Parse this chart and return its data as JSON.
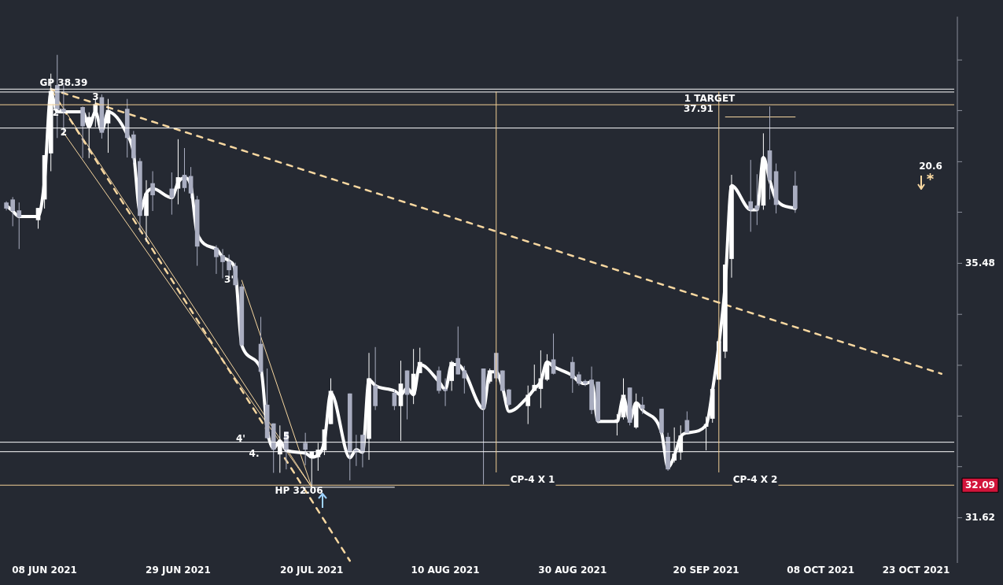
{
  "chart_data": {
    "type": "candlestick",
    "x": [
      "2021-06-02",
      "2021-06-03",
      "2021-06-04",
      "2021-06-07",
      "2021-06-08",
      "2021-06-09",
      "2021-06-10",
      "2021-06-11",
      "2021-06-14",
      "2021-06-15",
      "2021-06-16",
      "2021-06-17",
      "2021-06-18",
      "2021-06-21",
      "2021-06-22",
      "2021-06-23",
      "2021-06-24",
      "2021-06-25",
      "2021-06-28",
      "2021-06-29",
      "2021-06-30",
      "2021-07-01",
      "2021-07-02",
      "2021-07-05",
      "2021-07-06",
      "2021-07-07",
      "2021-07-08",
      "2021-07-09",
      "2021-07-12",
      "2021-07-13",
      "2021-07-14",
      "2021-07-15",
      "2021-07-16",
      "2021-07-19",
      "2021-07-20",
      "2021-07-21",
      "2021-07-22",
      "2021-07-23",
      "2021-07-26",
      "2021-07-27",
      "2021-07-28",
      "2021-07-29",
      "2021-07-30",
      "2021-08-02",
      "2021-08-03",
      "2021-08-04",
      "2021-08-05",
      "2021-08-06",
      "2021-08-09",
      "2021-08-10",
      "2021-08-11",
      "2021-08-12",
      "2021-08-13",
      "2021-08-16",
      "2021-08-17",
      "2021-08-18",
      "2021-08-19",
      "2021-08-20",
      "2021-08-23",
      "2021-08-24",
      "2021-08-25",
      "2021-08-26",
      "2021-08-27",
      "2021-08-30",
      "2021-08-31",
      "2021-09-01",
      "2021-09-02",
      "2021-09-03",
      "2021-09-06",
      "2021-09-07",
      "2021-09-08",
      "2021-09-09",
      "2021-09-10",
      "2021-09-13",
      "2021-09-14",
      "2021-09-15",
      "2021-09-16",
      "2021-09-17",
      "2021-09-20",
      "2021-09-21",
      "2021-09-22",
      "2021-09-23",
      "2021-09-24",
      "2021-09-27",
      "2021-09-28",
      "2021-09-29",
      "2021-09-30",
      "2021-10-01",
      "2021-10-04"
    ],
    "ohlc": [
      [
        36.47,
        36.49,
        36.34,
        36.37
      ],
      [
        36.52,
        36.56,
        36.08,
        36.33
      ],
      [
        36.34,
        36.47,
        35.71,
        36.23
      ],
      [
        36.18,
        36.38,
        36.04,
        36.38
      ],
      [
        36.52,
        37.26,
        36.37,
        37.26
      ],
      [
        37.29,
        38.66,
        36.99,
        38.36
      ],
      [
        38.46,
        38.99,
        37.55,
        38.03
      ],
      [
        38.05,
        38.46,
        37.64,
        38.0
      ],
      [
        38.08,
        38.09,
        37.21,
        37.75
      ],
      [
        37.75,
        37.99,
        37.21,
        37.91
      ],
      [
        37.93,
        38.22,
        37.74,
        38.13
      ],
      [
        38.25,
        38.3,
        37.54,
        37.64
      ],
      [
        37.8,
        38.22,
        37.3,
        38.03
      ],
      [
        38.05,
        38.22,
        37.22,
        37.55
      ],
      [
        37.61,
        37.67,
        37.13,
        37.21
      ],
      [
        37.16,
        37.21,
        35.99,
        36.25
      ],
      [
        36.25,
        36.84,
        35.83,
        36.62
      ],
      [
        36.79,
        36.99,
        36.33,
        36.59
      ],
      [
        36.7,
        36.97,
        36.27,
        36.55
      ],
      [
        36.7,
        37.53,
        36.44,
        36.89
      ],
      [
        36.93,
        37.38,
        36.65,
        36.71
      ],
      [
        36.91,
        37.06,
        36.54,
        36.62
      ],
      [
        36.52,
        36.58,
        35.44,
        35.75
      ],
      [
        35.73,
        35.77,
        35.31,
        35.58
      ],
      [
        35.61,
        35.71,
        35.24,
        35.5
      ],
      [
        35.51,
        35.62,
        35.24,
        35.37
      ],
      [
        35.44,
        35.49,
        35.09,
        35.13
      ],
      [
        35.11,
        35.15,
        34.17,
        34.19
      ],
      [
        34.21,
        34.63,
        33.75,
        33.78
      ],
      [
        33.28,
        33.83,
        32.77,
        32.78
      ],
      [
        33.0,
        33.0,
        32.27,
        32.61
      ],
      [
        32.54,
        32.97,
        32.27,
        32.72
      ],
      [
        32.88,
        32.88,
        32.32,
        32.61
      ],
      [
        32.71,
        32.86,
        32.38,
        32.61
      ],
      [
        32.49,
        32.58,
        32.06,
        32.58
      ],
      [
        32.5,
        32.71,
        32.3,
        32.61
      ],
      [
        32.6,
        32.91,
        32.53,
        32.91
      ],
      [
        32.99,
        33.68,
        32.99,
        33.49
      ],
      [
        33.45,
        33.45,
        32.16,
        32.57
      ],
      [
        32.61,
        32.83,
        32.37,
        32.57
      ],
      [
        32.83,
        32.83,
        32.35,
        32.57
      ],
      [
        32.77,
        34.07,
        32.46,
        33.68
      ],
      [
        33.57,
        34.16,
        33.2,
        33.26
      ],
      [
        33.46,
        33.51,
        33.2,
        33.26
      ],
      [
        33.26,
        33.95,
        32.74,
        33.6
      ],
      [
        33.8,
        33.8,
        33.06,
        33.43
      ],
      [
        33.43,
        34.13,
        33.29,
        33.75
      ],
      [
        33.76,
        34.15,
        33.76,
        33.93
      ],
      [
        33.8,
        33.86,
        33.45,
        33.49
      ],
      [
        33.52,
        33.68,
        33.26,
        33.49
      ],
      [
        33.64,
        33.95,
        33.49,
        33.93
      ],
      [
        33.99,
        34.48,
        33.74,
        33.74
      ],
      [
        33.8,
        33.87,
        33.45,
        33.68
      ],
      [
        33.83,
        33.83,
        32.1,
        33.22
      ],
      [
        33.63,
        33.83,
        33.6,
        33.8
      ],
      [
        34.07,
        34.07,
        33.63,
        33.68
      ],
      [
        33.8,
        33.8,
        33.49,
        33.49
      ],
      [
        33.51,
        33.52,
        33.26,
        33.28
      ],
      [
        33.26,
        33.57,
        32.99,
        33.43
      ],
      [
        33.49,
        33.89,
        33.49,
        33.58
      ],
      [
        33.52,
        34.11,
        33.23,
        33.68
      ],
      [
        33.66,
        34.05,
        33.64,
        33.93
      ],
      [
        33.97,
        34.37,
        33.74,
        33.75
      ],
      [
        33.93,
        34.01,
        33.46,
        33.68
      ],
      [
        33.74,
        33.78,
        33.57,
        33.6
      ],
      [
        33.64,
        33.66,
        33.56,
        33.6
      ],
      [
        33.66,
        33.86,
        33.14,
        33.2
      ],
      [
        33.63,
        33.63,
        33.0,
        33.03
      ],
      [
        33.03,
        33.14,
        32.82,
        33.06
      ],
      [
        33.09,
        33.68,
        33.06,
        33.43
      ],
      [
        33.54,
        33.54,
        32.97,
        33.01
      ],
      [
        32.94,
        33.45,
        32.92,
        33.31
      ],
      [
        33.28,
        33.4,
        33.14,
        33.22
      ],
      [
        33.22,
        33.22,
        32.83,
        32.86
      ],
      [
        32.8,
        32.86,
        32.3,
        32.32
      ],
      [
        32.45,
        32.94,
        32.42,
        32.55
      ],
      [
        32.57,
        32.97,
        32.46,
        32.82
      ],
      [
        33.05,
        33.18,
        32.86,
        32.86
      ],
      [
        32.95,
        33.1,
        32.6,
        32.99
      ],
      [
        33.07,
        33.52,
        33.01,
        33.52
      ],
      [
        33.66,
        34.25,
        33.66,
        34.25
      ],
      [
        34.09,
        35.46,
        33.99,
        35.46
      ],
      [
        35.55,
        36.93,
        35.25,
        36.75
      ],
      [
        36.49,
        37.18,
        35.99,
        36.35
      ],
      [
        36.42,
        36.94,
        36.1,
        36.35
      ],
      [
        36.42,
        37.63,
        36.35,
        37.22
      ],
      [
        37.34,
        38.09,
        36.52,
        36.84
      ],
      [
        36.99,
        37.12,
        36.29,
        36.43
      ],
      [
        36.75,
        36.99,
        36.3,
        36.37
      ]
    ],
    "colors": [
      "#a9adc0",
      "#a9adc0",
      "#a9adc0",
      "#ffffff",
      "#ffffff",
      "#ffffff",
      "#a9adc0",
      "#a9adc0",
      "#a9adc0",
      "#ffffff",
      "#ffffff",
      "#a9adc0",
      "#ffffff",
      "#a9adc0",
      "#a9adc0",
      "#a9adc0",
      "#ffffff",
      "#a9adc0",
      "#a9adc0",
      "#ffffff",
      "#a9adc0",
      "#a9adc0",
      "#a9adc0",
      "#a9adc0",
      "#a9adc0",
      "#a9adc0",
      "#a9adc0",
      "#a9adc0",
      "#a9adc0",
      "#a9adc0",
      "#a9adc0",
      "#ffffff",
      "#a9adc0",
      "#a9adc0",
      "#ffffff",
      "#ffffff",
      "#ffffff",
      "#ffffff",
      "#a9adc0",
      "#a9adc0",
      "#a9adc0",
      "#ffffff",
      "#a9adc0",
      "#a9adc0",
      "#ffffff",
      "#a9adc0",
      "#ffffff",
      "#ffffff",
      "#a9adc0",
      "#a9adc0",
      "#ffffff",
      "#a9adc0",
      "#a9adc0",
      "#a9adc0",
      "#ffffff",
      "#a9adc0",
      "#a9adc0",
      "#a9adc0",
      "#ffffff",
      "#ffffff",
      "#ffffff",
      "#ffffff",
      "#a9adc0",
      "#a9adc0",
      "#a9adc0",
      "#a9adc0",
      "#a9adc0",
      "#a9adc0",
      "#ffffff",
      "#ffffff",
      "#a9adc0",
      "#ffffff",
      "#a9adc0",
      "#a9adc0",
      "#a9adc0",
      "#ffffff",
      "#ffffff",
      "#a9adc0",
      "#ffffff",
      "#ffffff",
      "#ffffff",
      "#ffffff",
      "#ffffff",
      "#a9adc0",
      "#a9adc0",
      "#ffffff",
      "#a9adc0",
      "#a9adc0",
      "#a9adc0"
    ],
    "series": [
      {
        "type": "line",
        "color": "#ffffff",
        "values": [
          36.42,
          36.33,
          36.24,
          36.24,
          36.84,
          38.33,
          38.0,
          38.0,
          38.0,
          37.74,
          38.0,
          37.67,
          38.0,
          37.61,
          37.29,
          36.33,
          36.62,
          36.7,
          36.55,
          36.8,
          36.88,
          36.75,
          35.96,
          35.71,
          35.58,
          35.52,
          35.34,
          34.19,
          33.83,
          32.91,
          32.63,
          32.74,
          32.6,
          32.56,
          32.5,
          32.53,
          32.74,
          33.46,
          32.49,
          32.61,
          32.57,
          33.66,
          33.57,
          33.49,
          33.43,
          33.53,
          33.43,
          33.89,
          33.63,
          33.51,
          33.89,
          33.89,
          33.78,
          33.22,
          33.78,
          33.78,
          33.54,
          33.18,
          33.4,
          33.52,
          33.63,
          33.93,
          33.86,
          33.72,
          33.63,
          33.6,
          33.63,
          33.03,
          33.03,
          33.39,
          33.05,
          33.31,
          33.2,
          32.86,
          32.35,
          32.52,
          32.8,
          32.86,
          32.97,
          33.49,
          34.19,
          35.15,
          36.75,
          36.35,
          36.35,
          37.22,
          36.84,
          36.52,
          36.37
        ]
      },
      {
        "type": "line",
        "x": [
          "2021-06-09",
          "2021-10-27"
        ],
        "values": [
          38.39,
          33.75
        ],
        "color": "#f7d7a0",
        "line_style": "dashed"
      },
      {
        "type": "line",
        "x": [
          "2021-06-09",
          "2021-07-26"
        ],
        "values": [
          38.39,
          31.01
        ],
        "color": "#f7d7a0",
        "line_style": "dashed"
      },
      {
        "type": "line",
        "x": [
          "2021-06-09",
          "2021-07-20"
        ],
        "values": [
          38.39,
          32.06
        ],
        "color": "#f7d7a0",
        "line_style": "solid"
      },
      {
        "type": "line",
        "x": [
          "2021-06-11",
          "2021-07-20"
        ],
        "values": [
          37.64,
          32.06
        ],
        "color": "#f7d7a0",
        "line_style": "solid"
      },
      {
        "type": "line",
        "x": [
          "2021-07-09",
          "2021-07-20"
        ],
        "values": [
          35.21,
          32.06
        ],
        "color": "#f7d7a0",
        "line_style": "solid"
      },
      {
        "type": "line",
        "x": [
          "2021-09-23",
          "2021-10-04"
        ],
        "values": [
          37.91,
          37.91
        ],
        "color": "#f7d7a0",
        "line_style": "solid"
      },
      {
        "type": "line",
        "x": [
          "2021-07-19",
          "2021-08-02"
        ],
        "values": [
          32.06,
          32.06
        ],
        "color": "#ffffff",
        "line_style": "solid"
      }
    ],
    "xlim": [
      "2021-06-01",
      "2021-10-29"
    ],
    "xticks": [
      {
        "value": "2021-06-08",
        "label": "08 JUN 2021"
      },
      {
        "value": "2021-06-29",
        "label": "29 JUN 2021"
      },
      {
        "value": "2021-07-20",
        "label": "20 JUL 2021"
      },
      {
        "value": "2021-08-10",
        "label": "10 AUG 2021"
      },
      {
        "value": "2021-08-30",
        "label": "30 AUG 2021"
      },
      {
        "value": "2021-09-20",
        "label": "20 SEP 2021"
      },
      {
        "value": "2021-10-08",
        "label": "08 OCT 2021"
      },
      {
        "value": "2021-10-23",
        "label": "23 OCT 2021"
      }
    ],
    "ylim": [
      30.98,
      39.67
    ],
    "yticks": [
      31.62,
      {
        "value": 32.36,
        "label": null
      },
      {
        "value": 33.11,
        "label": null
      },
      {
        "value": 33.88,
        "label": null
      },
      {
        "value": 34.67,
        "label": null
      },
      35.48,
      {
        "value": 36.31,
        "label": null
      },
      {
        "value": 37.15,
        "label": null
      },
      {
        "value": 38.02,
        "label": null
      },
      {
        "value": 38.9,
        "label": null
      }
    ],
    "log": "y",
    "grid": false,
    "legend": false,
    "marker": "none",
    "ref_lines": [
      {
        "axis": "y",
        "value": 38.39,
        "color": "#ffffff"
      },
      {
        "axis": "y",
        "value": 38.34,
        "color": "#ffffff"
      },
      {
        "axis": "y",
        "value": 38.12,
        "color": "#f2cf95"
      },
      {
        "axis": "y",
        "value": 37.72,
        "color": "#ffffff"
      },
      {
        "axis": "y",
        "value": 32.72,
        "color": "#ffffff"
      },
      {
        "axis": "y",
        "value": 32.58,
        "color": "#ffffff"
      },
      {
        "axis": "y",
        "value": 32.09,
        "color": "#f2cf95",
        "label": "32.09"
      },
      {
        "axis": "x",
        "value": "2021-08-18",
        "color": "#f2cf95",
        "label": "CP-4 X 1"
      },
      {
        "axis": "x",
        "value": "2021-09-22",
        "color": "#f2cf95",
        "label": "CP-4 X 2"
      }
    ],
    "annotations": [
      {
        "text": "GP 38.39",
        "x": "2021-06-11",
        "y": 38.49
      },
      {
        "text": "2'",
        "x": "2021-06-10",
        "y": 37.97
      },
      {
        "text": "2",
        "x": "2021-06-11",
        "y": 37.64
      },
      {
        "text": "3",
        "x": "2021-06-16",
        "y": 38.25
      },
      {
        "text": "3'",
        "x": "2021-07-07",
        "y": 35.21
      },
      "4'",
      "4.",
      {
        "text": "5",
        "x": "2021-07-16",
        "y": 32.8
      },
      "HP 32.06",
      "1 TARGET",
      "37.91",
      "20.6"
    ]
  }
}
